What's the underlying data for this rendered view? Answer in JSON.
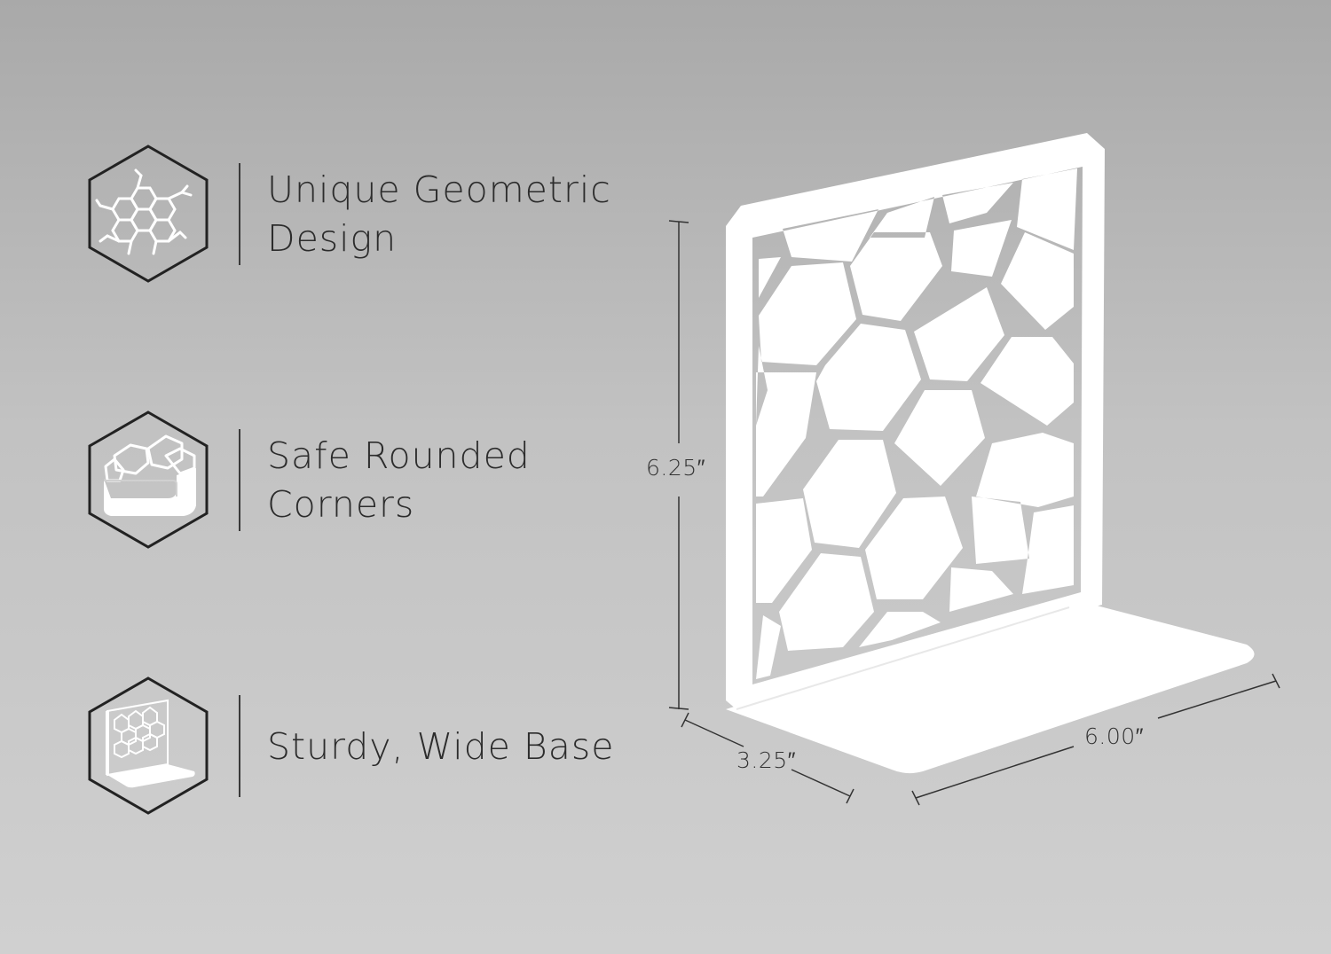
{
  "features": [
    {
      "label": "Unique Geometric\nDesign",
      "icon": "honeycomb-pattern-icon"
    },
    {
      "label": "Safe Rounded\nCorners",
      "icon": "rounded-corner-icon"
    },
    {
      "label": "Sturdy, Wide Base",
      "icon": "bookend-base-icon"
    }
  ],
  "dimensions": {
    "height": "6.25″",
    "depth": "3.25″",
    "width": "6.00″"
  },
  "colors": {
    "background_top": "#a9a9a9",
    "background_bottom": "#d0d0d0",
    "product": "#ffffff",
    "line": "#2a2a2a"
  }
}
